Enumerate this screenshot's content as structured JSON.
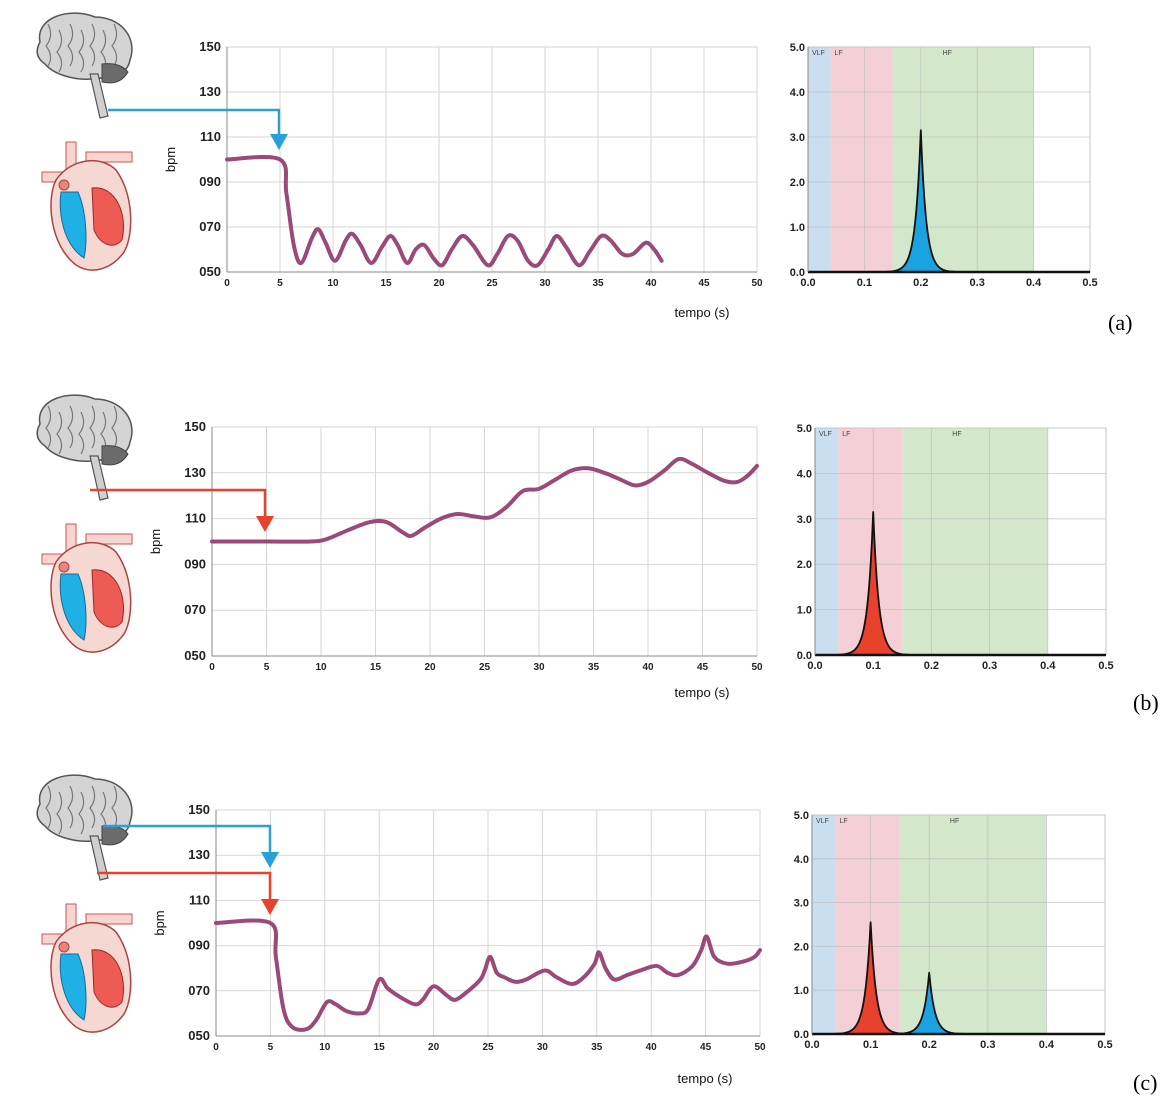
{
  "chart_data": [
    {
      "panel": "(a)",
      "arrows": [
        "blue"
      ],
      "time_series": {
        "type": "line",
        "xlabel": "tempo (s)",
        "ylabel": "bpm",
        "xlim": [
          0,
          50
        ],
        "ylim": [
          50,
          150
        ],
        "x_ticks": [
          "0",
          "5",
          "10",
          "15",
          "20",
          "25",
          "30",
          "35",
          "40",
          "45",
          "50"
        ],
        "y_ticks": [
          "050",
          "070",
          "090",
          "110",
          "130",
          "150"
        ],
        "grid": true,
        "line_color": "#9b4a77",
        "points": [
          [
            0,
            100
          ],
          [
            5,
            100
          ],
          [
            5.6,
            85
          ],
          [
            6.3,
            62
          ],
          [
            7,
            54
          ],
          [
            8,
            65
          ],
          [
            8.6,
            69
          ],
          [
            9.3,
            63
          ],
          [
            10.2,
            55
          ],
          [
            11.2,
            64
          ],
          [
            11.8,
            67
          ],
          [
            12.6,
            62
          ],
          [
            13.6,
            54
          ],
          [
            14.6,
            61
          ],
          [
            15.4,
            66
          ],
          [
            16.1,
            62
          ],
          [
            17,
            54
          ],
          [
            17.8,
            60
          ],
          [
            18.6,
            62
          ],
          [
            19.5,
            56
          ],
          [
            20.3,
            53
          ],
          [
            21.2,
            60
          ],
          [
            22.2,
            66
          ],
          [
            23.2,
            62
          ],
          [
            24.6,
            53
          ],
          [
            25.5,
            58
          ],
          [
            26.5,
            66
          ],
          [
            27.4,
            64
          ],
          [
            28.4,
            55
          ],
          [
            29.3,
            53
          ],
          [
            30.3,
            60
          ],
          [
            31.1,
            66
          ],
          [
            32,
            61
          ],
          [
            33.2,
            53
          ],
          [
            34.2,
            59
          ],
          [
            35.3,
            66
          ],
          [
            36.2,
            64
          ],
          [
            37.3,
            58
          ],
          [
            38.3,
            58
          ],
          [
            39.5,
            63
          ],
          [
            40.3,
            60
          ],
          [
            41,
            55
          ]
        ]
      },
      "spectrum": {
        "type": "area",
        "xlim": [
          0,
          0.5
        ],
        "ylim": [
          0,
          5
        ],
        "x_ticks": [
          "0.0",
          "0.1",
          "0.2",
          "0.3",
          "0.4",
          "0.5"
        ],
        "y_ticks": [
          "0.0",
          "1.0",
          "2.0",
          "3.0",
          "4.0",
          "5.0"
        ],
        "bands": [
          {
            "label": "VLF",
            "from": 0.0,
            "to": 0.04,
            "color": "#c9dff0"
          },
          {
            "label": "LF",
            "from": 0.04,
            "to": 0.15,
            "color": "#f4cfd6"
          },
          {
            "label": "HF",
            "from": 0.15,
            "to": 0.4,
            "color": "#d3e8cb"
          }
        ],
        "peaks": [
          {
            "center": 0.2,
            "height": 3.15,
            "color": "#1aa3e0"
          }
        ]
      }
    },
    {
      "panel": "(b)",
      "arrows": [
        "red"
      ],
      "time_series": {
        "type": "line",
        "xlabel": "tempo (s)",
        "ylabel": "bpm",
        "xlim": [
          0,
          50
        ],
        "ylim": [
          50,
          150
        ],
        "x_ticks": [
          "0",
          "5",
          "10",
          "15",
          "20",
          "25",
          "30",
          "35",
          "40",
          "45",
          "50"
        ],
        "y_ticks": [
          "050",
          "070",
          "090",
          "110",
          "130",
          "150"
        ],
        "grid": true,
        "line_color": "#9b4a77",
        "points": [
          [
            0,
            100
          ],
          [
            5,
            100
          ],
          [
            9,
            100
          ],
          [
            10.5,
            101
          ],
          [
            12.5,
            105
          ],
          [
            14.5,
            108.5
          ],
          [
            16,
            108.5
          ],
          [
            17.5,
            104
          ],
          [
            18.3,
            102.5
          ],
          [
            19.5,
            106
          ],
          [
            21,
            110
          ],
          [
            22.5,
            112
          ],
          [
            24,
            111
          ],
          [
            25.5,
            110.5
          ],
          [
            27,
            115
          ],
          [
            28.5,
            122
          ],
          [
            30,
            123
          ],
          [
            31.5,
            127
          ],
          [
            33,
            131
          ],
          [
            34.5,
            132
          ],
          [
            36,
            130
          ],
          [
            37.5,
            127
          ],
          [
            38.8,
            124.5
          ],
          [
            40,
            126
          ],
          [
            41.5,
            131
          ],
          [
            42.8,
            136
          ],
          [
            44,
            134
          ],
          [
            45.5,
            130
          ],
          [
            47,
            126.5
          ],
          [
            48.2,
            126
          ],
          [
            49.2,
            129
          ],
          [
            50,
            133
          ]
        ]
      },
      "spectrum": {
        "type": "area",
        "xlim": [
          0,
          0.5
        ],
        "ylim": [
          0,
          5
        ],
        "x_ticks": [
          "0.0",
          "0.1",
          "0.2",
          "0.3",
          "0.4",
          "0.5"
        ],
        "y_ticks": [
          "0.0",
          "1.0",
          "2.0",
          "3.0",
          "4.0",
          "5.0"
        ],
        "bands": [
          {
            "label": "VLF",
            "from": 0.0,
            "to": 0.04,
            "color": "#c9dff0"
          },
          {
            "label": "LF",
            "from": 0.04,
            "to": 0.15,
            "color": "#f4cfd6"
          },
          {
            "label": "HF",
            "from": 0.15,
            "to": 0.4,
            "color": "#d3e8cb"
          }
        ],
        "peaks": [
          {
            "center": 0.1,
            "height": 3.15,
            "color": "#e8412c"
          }
        ]
      }
    },
    {
      "panel": "(c)",
      "arrows": [
        "blue",
        "red"
      ],
      "time_series": {
        "type": "line",
        "xlabel": "tempo (s)",
        "ylabel": "bpm",
        "xlim": [
          0,
          50
        ],
        "ylim": [
          50,
          150
        ],
        "x_ticks": [
          "0",
          "5",
          "10",
          "15",
          "20",
          "25",
          "30",
          "35",
          "40",
          "45",
          "50"
        ],
        "y_ticks": [
          "050",
          "070",
          "090",
          "110",
          "130",
          "150"
        ],
        "grid": true,
        "line_color": "#9b4a77",
        "points": [
          [
            0,
            100
          ],
          [
            5,
            100
          ],
          [
            5.5,
            85
          ],
          [
            6.2,
            62
          ],
          [
            7,
            54
          ],
          [
            8.3,
            53
          ],
          [
            9.2,
            57
          ],
          [
            10.2,
            65
          ],
          [
            11,
            64
          ],
          [
            12,
            61
          ],
          [
            13.2,
            60
          ],
          [
            14,
            62
          ],
          [
            15,
            75
          ],
          [
            15.8,
            71
          ],
          [
            17,
            67
          ],
          [
            18.3,
            64
          ],
          [
            19,
            66
          ],
          [
            20,
            72
          ],
          [
            21.2,
            68
          ],
          [
            22,
            66
          ],
          [
            23.2,
            70
          ],
          [
            24.3,
            75
          ],
          [
            24.7,
            79
          ],
          [
            25.2,
            85
          ],
          [
            25.8,
            78
          ],
          [
            26.5,
            76
          ],
          [
            27.5,
            74
          ],
          [
            28.5,
            75
          ],
          [
            30.2,
            79
          ],
          [
            31.3,
            76
          ],
          [
            32.7,
            73
          ],
          [
            33.8,
            76
          ],
          [
            34.8,
            82
          ],
          [
            35.2,
            87
          ],
          [
            35.8,
            80
          ],
          [
            36.6,
            75
          ],
          [
            37.8,
            77
          ],
          [
            39,
            79
          ],
          [
            40.5,
            81
          ],
          [
            41.5,
            78
          ],
          [
            42.5,
            77
          ],
          [
            43.8,
            81
          ],
          [
            44.6,
            88
          ],
          [
            45.1,
            94
          ],
          [
            45.8,
            85
          ],
          [
            47,
            82
          ],
          [
            48.5,
            83
          ],
          [
            49.5,
            85
          ],
          [
            50,
            88
          ]
        ]
      },
      "spectrum": {
        "type": "area",
        "xlim": [
          0,
          0.5
        ],
        "ylim": [
          0,
          5
        ],
        "x_ticks": [
          "0.0",
          "0.1",
          "0.2",
          "0.3",
          "0.4",
          "0.5"
        ],
        "y_ticks": [
          "0.0",
          "1.0",
          "2.0",
          "3.0",
          "4.0",
          "5.0"
        ],
        "bands": [
          {
            "label": "VLF",
            "from": 0.0,
            "to": 0.04,
            "color": "#c9dff0"
          },
          {
            "label": "LF",
            "from": 0.04,
            "to": 0.15,
            "color": "#f4cfd6"
          },
          {
            "label": "HF",
            "from": 0.15,
            "to": 0.4,
            "color": "#d3e8cb"
          }
        ],
        "peaks": [
          {
            "center": 0.1,
            "height": 2.55,
            "color": "#e8412c"
          },
          {
            "center": 0.2,
            "height": 1.4,
            "color": "#1aa3e0"
          }
        ]
      }
    }
  ]
}
